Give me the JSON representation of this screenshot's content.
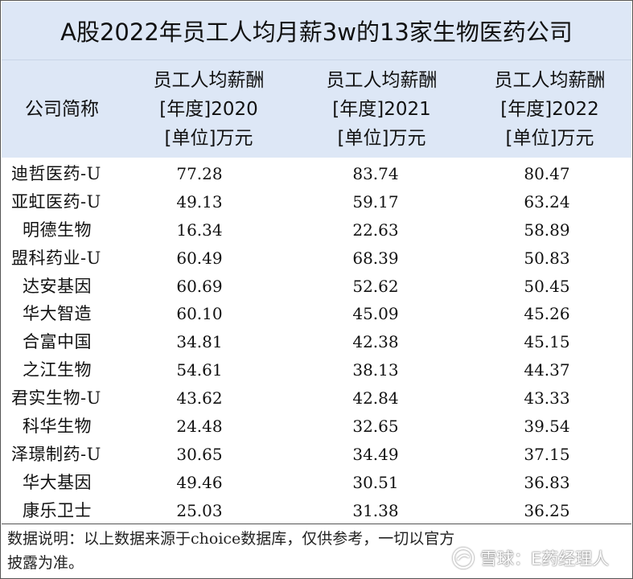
{
  "title": "A股2022年员工人均月薪3w的13家生物医药公司",
  "header": {
    "company": "公司简称",
    "col2020": [
      "员工人均薪酬",
      "[年度]2020",
      "[单位]万元"
    ],
    "col2021": [
      "员工人均薪酬",
      "[年度]2021",
      "[单位]万元"
    ],
    "col2022": [
      "员工人均薪酬",
      "[年度]2022",
      "[单位]万元"
    ]
  },
  "rows": [
    {
      "name": "迪哲医药-U",
      "v2020": "77.28",
      "v2021": "83.74",
      "v2022": "80.47"
    },
    {
      "name": "亚虹医药-U",
      "v2020": "49.13",
      "v2021": "59.17",
      "v2022": "63.24"
    },
    {
      "name": "明德生物",
      "v2020": "16.34",
      "v2021": "22.63",
      "v2022": "58.89"
    },
    {
      "name": "盟科药业-U",
      "v2020": "60.49",
      "v2021": "68.39",
      "v2022": "50.83"
    },
    {
      "name": "达安基因",
      "v2020": "60.69",
      "v2021": "52.62",
      "v2022": "50.45"
    },
    {
      "name": "华大智造",
      "v2020": "60.10",
      "v2021": "45.09",
      "v2022": "45.26"
    },
    {
      "name": "合富中国",
      "v2020": "34.81",
      "v2021": "42.38",
      "v2022": "45.15"
    },
    {
      "name": "之江生物",
      "v2020": "54.61",
      "v2021": "38.13",
      "v2022": "44.37"
    },
    {
      "name": "君实生物-U",
      "v2020": "43.62",
      "v2021": "42.84",
      "v2022": "43.33"
    },
    {
      "name": "科华生物",
      "v2020": "24.48",
      "v2021": "32.65",
      "v2022": "39.54"
    },
    {
      "name": "泽璟制药-U",
      "v2020": "30.65",
      "v2021": "34.49",
      "v2022": "37.15"
    },
    {
      "name": "华大基因",
      "v2020": "49.46",
      "v2021": "30.51",
      "v2022": "36.83"
    },
    {
      "name": "康乐卫士",
      "v2020": "25.03",
      "v2021": "31.38",
      "v2022": "36.25"
    }
  ],
  "note": "数据说明：以上数据来源于choice数据库，仅供参考，一切以官方披露为准。",
  "watermark": {
    "icon": "snowball-logo-icon",
    "text": "雪球：E药经理人"
  }
}
